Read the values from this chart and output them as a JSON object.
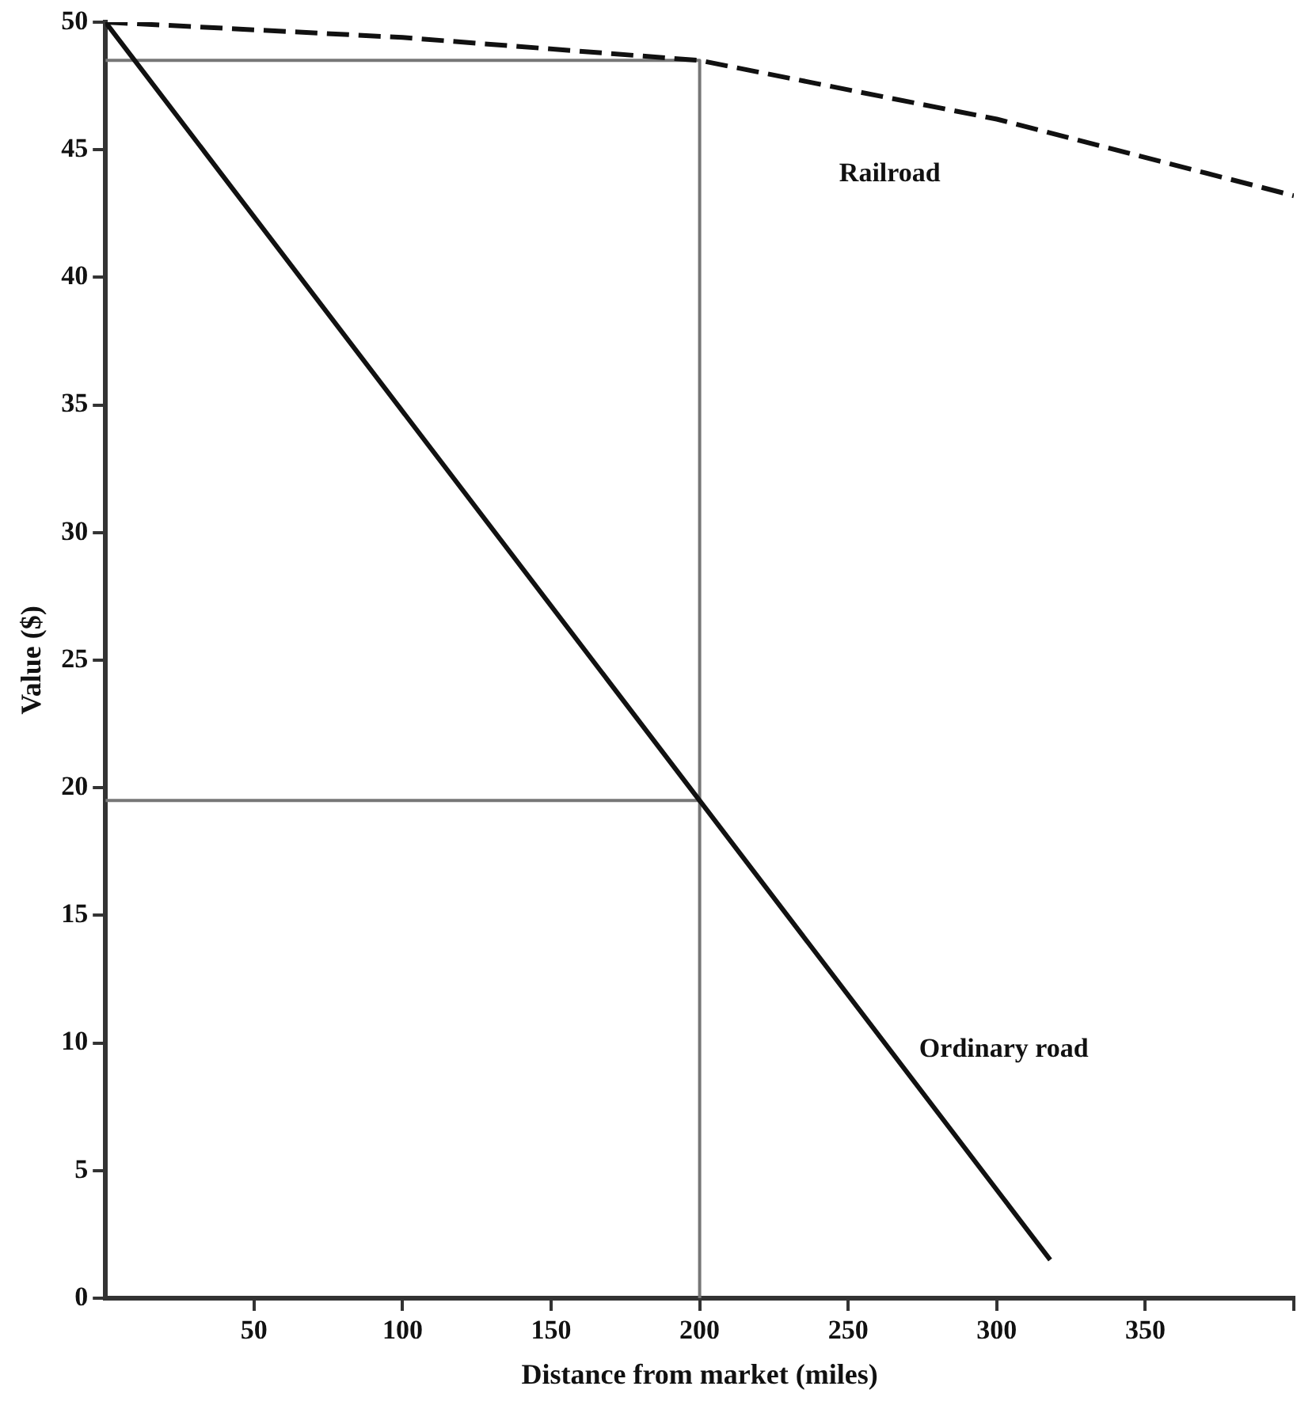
{
  "chart_data": {
    "type": "line",
    "xlabel": "Distance from market (miles)",
    "ylabel": "Value ($)",
    "xlim": [
      0,
      400
    ],
    "xticks": [
      50,
      100,
      150,
      200,
      250,
      300,
      350,
      {
        "value": 400,
        "label": null
      }
    ],
    "ylim": [
      0,
      50
    ],
    "yticks": [
      0,
      5,
      10,
      15,
      20,
      25,
      30,
      35,
      40,
      45,
      50
    ],
    "grid": false,
    "legend": false,
    "marker": "none",
    "series": [
      {
        "name": "Railroad",
        "x": [
          0,
          100,
          200,
          300,
          400
        ],
        "values": [
          50,
          49.4,
          48.5,
          46.2,
          43.2
        ],
        "color": "#111111",
        "line_style": "dashed"
      },
      {
        "name": "Ordinary road",
        "x": [
          0,
          200,
          318
        ],
        "values": [
          50,
          19.5,
          1.5
        ],
        "color": "#111111",
        "line_style": "solid"
      },
      {
        "x": [
          0,
          200,
          200
        ],
        "values": [
          48.5,
          48.5,
          0
        ],
        "color": "#777777",
        "line_style": "solid"
      },
      {
        "x": [
          0,
          200
        ],
        "values": [
          19.5,
          19.5
        ],
        "color": "#777777",
        "line_style": "solid"
      }
    ]
  }
}
